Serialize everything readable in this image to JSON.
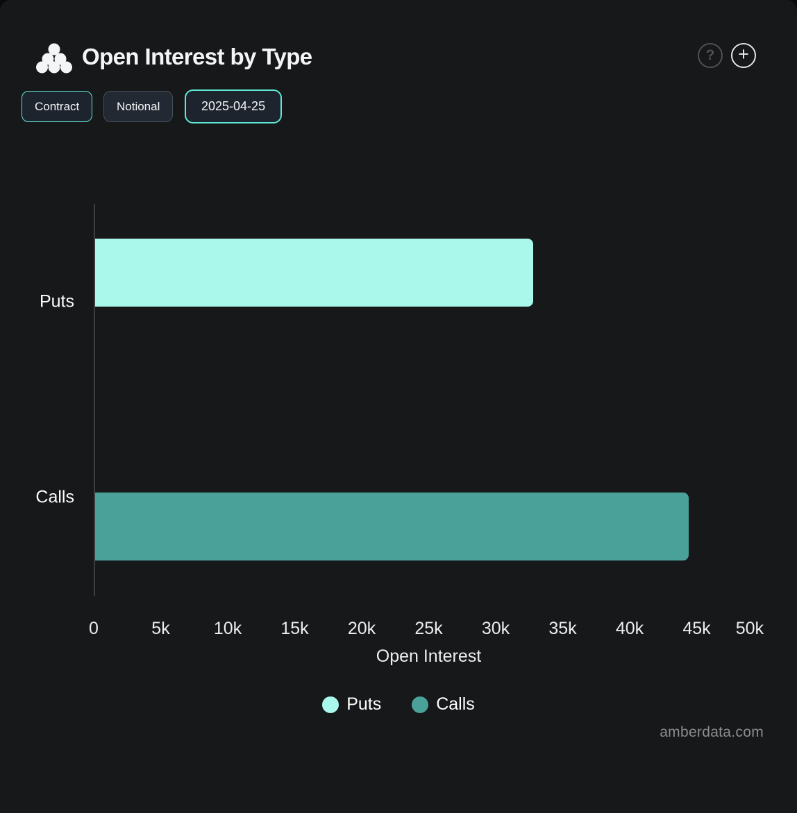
{
  "header": {
    "title": "Open Interest by Type",
    "help_label": "?",
    "add_label": "+"
  },
  "toolbar": {
    "buttons": [
      {
        "label": "Contract",
        "active": true
      },
      {
        "label": "Notional",
        "active": false
      },
      {
        "label": "2025-04-25",
        "active": true
      }
    ]
  },
  "chart_data": {
    "type": "bar",
    "orientation": "horizontal",
    "title": "Open Interest by Type",
    "categories": [
      "Puts",
      "Calls"
    ],
    "series": [
      {
        "name": "Puts",
        "color": "#aaf8ec",
        "values": [
          32800,
          null
        ]
      },
      {
        "name": "Calls",
        "color": "#4aa19a",
        "values": [
          null,
          44400
        ]
      }
    ],
    "xlabel": "Open Interest",
    "xlim": [
      0,
      50000
    ],
    "xtick_labels": [
      "0",
      "5k",
      "10k",
      "15k",
      "20k",
      "25k",
      "30k",
      "35k",
      "40k",
      "45k",
      "50k"
    ],
    "grid": false,
    "legend_position": "bottom",
    "legend": [
      {
        "label": "Puts",
        "color": "#aaf8ec"
      },
      {
        "label": "Calls",
        "color": "#4aa19a"
      }
    ]
  },
  "colors": {
    "card_background": "#17181a",
    "accent_teal": "#5eead4",
    "puts_bar": "#aaf8ec",
    "calls_bar": "#4aa19a",
    "axis_line": "#3a3e42"
  },
  "watermark": "amberdata.com"
}
